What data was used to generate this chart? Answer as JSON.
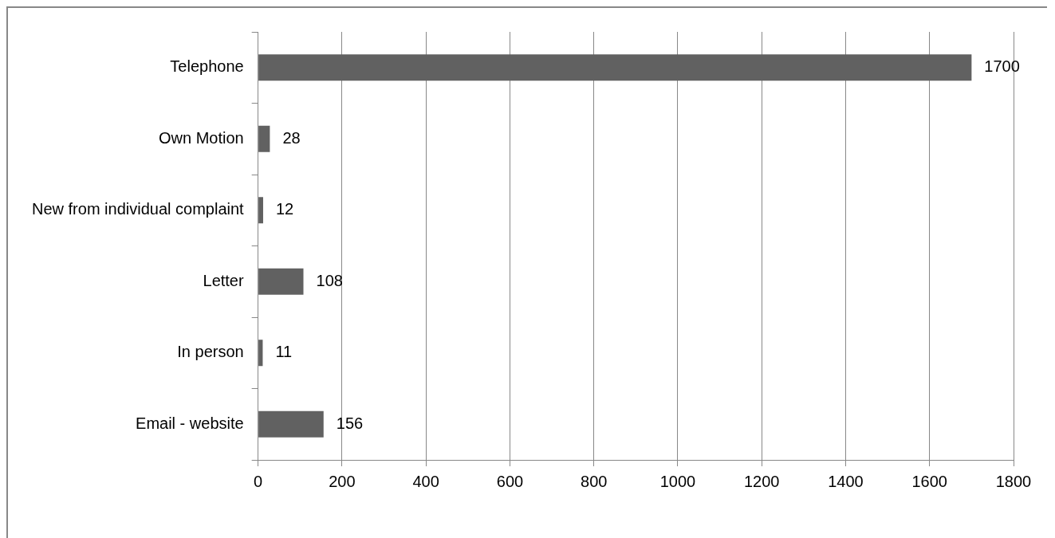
{
  "chart_data": {
    "type": "bar",
    "orientation": "horizontal",
    "categories": [
      "Telephone",
      "Own Motion",
      "New from individual complaint",
      "Letter",
      "In person",
      "Email - website"
    ],
    "values": [
      1700,
      28,
      12,
      108,
      11,
      156
    ],
    "color": "#616161",
    "xlim": [
      0,
      1800
    ],
    "xticks": [
      0,
      200,
      400,
      600,
      800,
      1000,
      1200,
      1400,
      1600,
      1800
    ],
    "grid": "x",
    "data_labels": true,
    "legend": false
  }
}
